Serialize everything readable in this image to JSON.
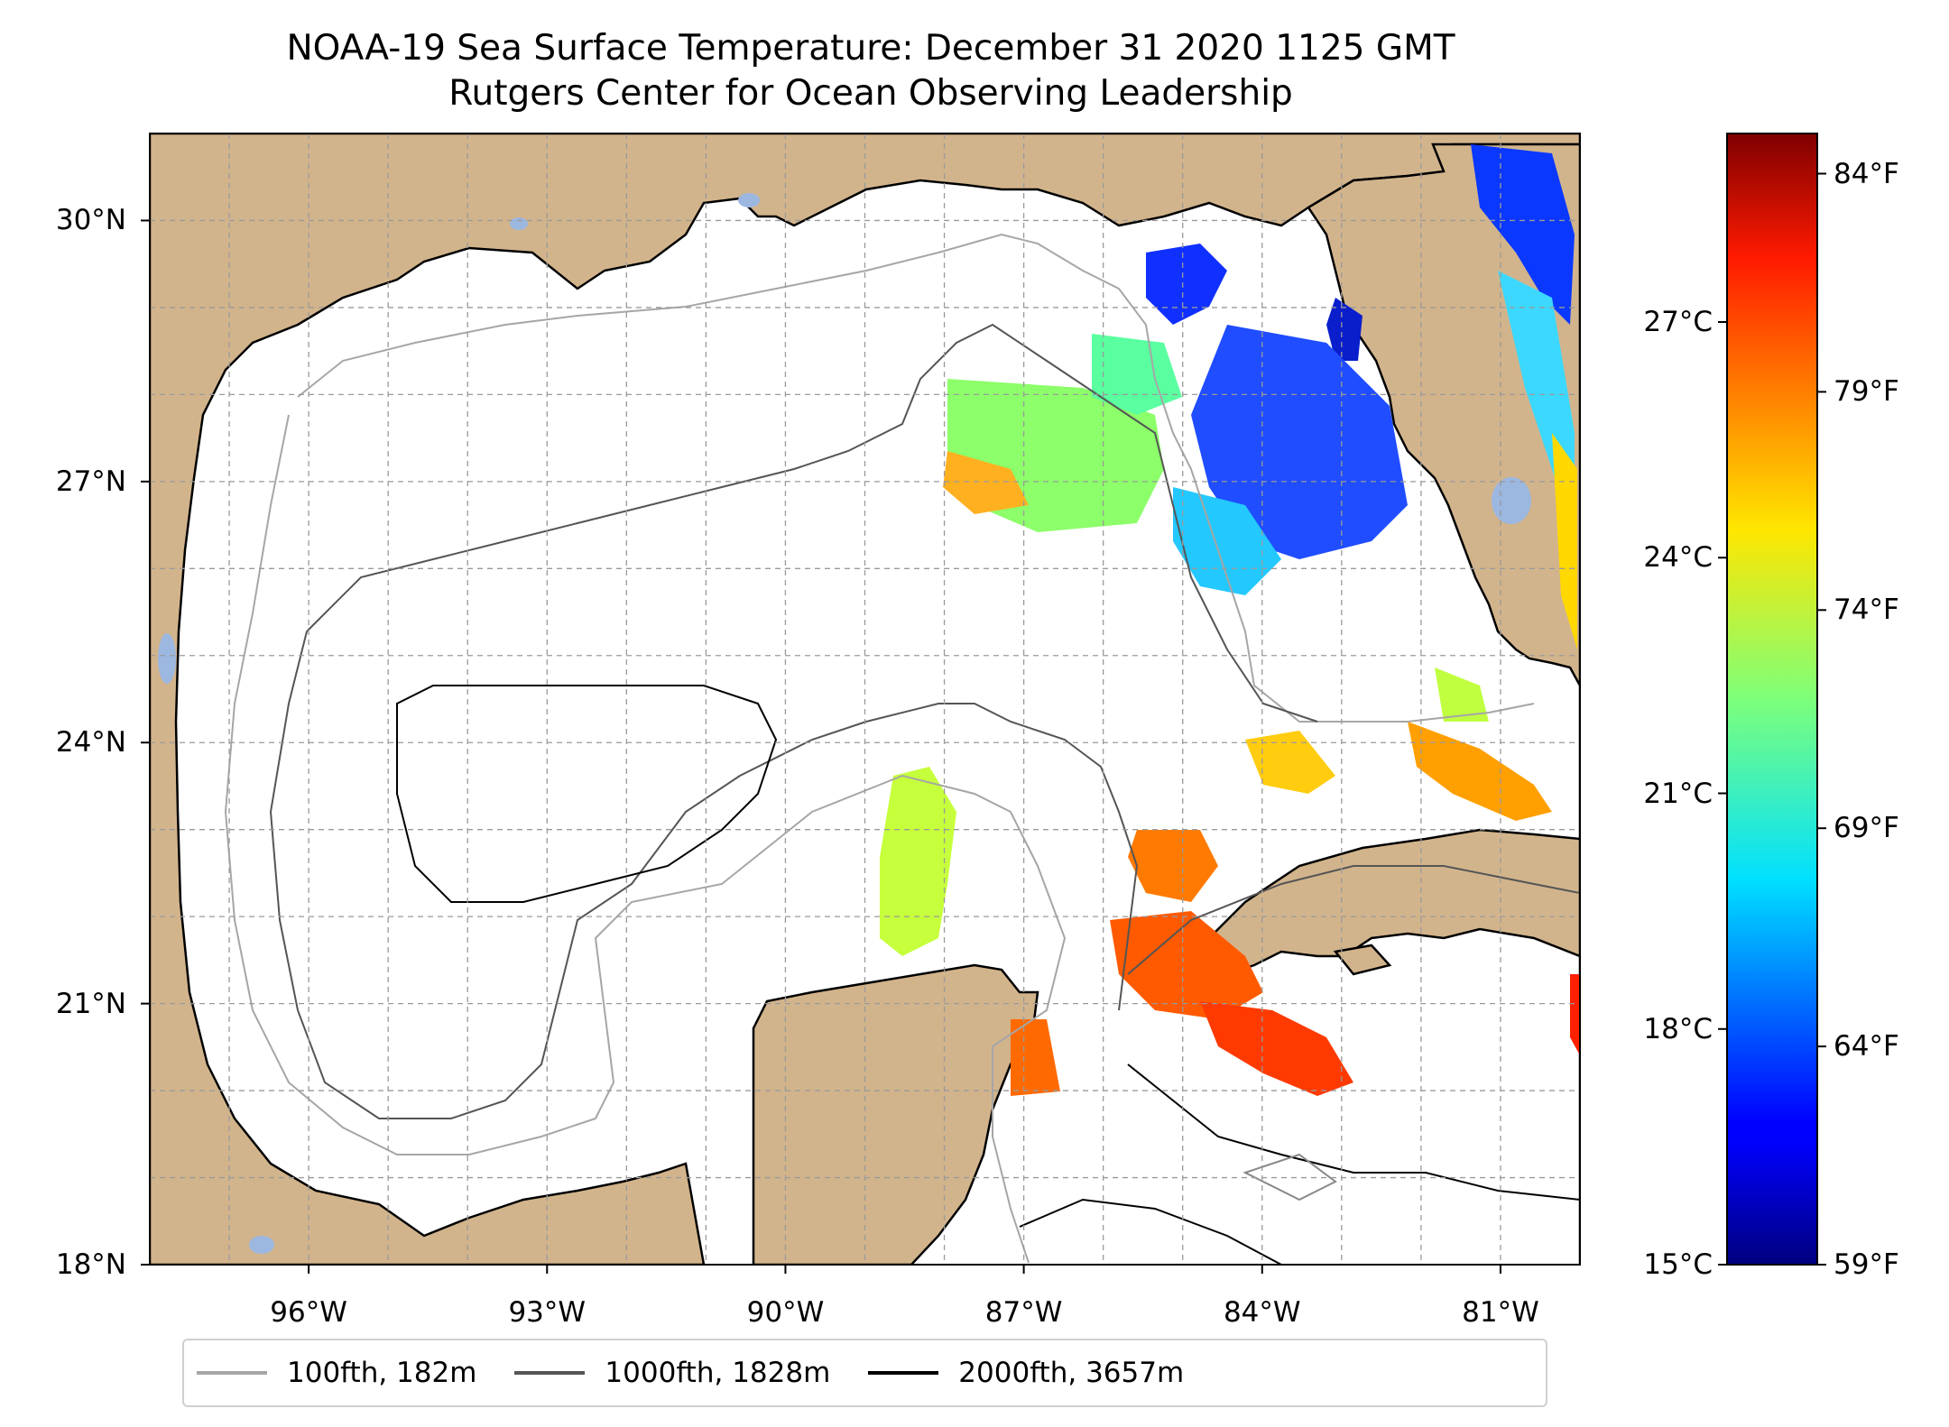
{
  "title": "NOAA-19 Sea Surface Temperature: December 31 2020 1125 GMT",
  "subtitle": "Rutgers Center for Ocean Observing Leadership",
  "map": {
    "lat_range": [
      18,
      31
    ],
    "lon_range": [
      -98,
      -80
    ],
    "lat_ticks": [
      {
        "value": 30,
        "label": "30°N"
      },
      {
        "value": 27,
        "label": "27°N"
      },
      {
        "value": 24,
        "label": "24°N"
      },
      {
        "value": 21,
        "label": "21°N"
      },
      {
        "value": 18,
        "label": "18°N"
      }
    ],
    "lon_ticks": [
      {
        "value": -96,
        "label": "96°W"
      },
      {
        "value": -93,
        "label": "93°W"
      },
      {
        "value": -90,
        "label": "90°W"
      },
      {
        "value": -87,
        "label": "87°W"
      },
      {
        "value": -84,
        "label": "84°W"
      },
      {
        "value": -81,
        "label": "81°W"
      }
    ],
    "gridlines": true,
    "land_color": "#d2b48c",
    "lake_color": "#9cb7e0"
  },
  "colorbar": {
    "colormap": "jet",
    "celsius_range": [
      15,
      29.4
    ],
    "celsius_ticks": [
      {
        "value": 15,
        "label": "15°C"
      },
      {
        "value": 18,
        "label": "18°C"
      },
      {
        "value": 21,
        "label": "21°C"
      },
      {
        "value": 24,
        "label": "24°C"
      },
      {
        "value": 27,
        "label": "27°C"
      }
    ],
    "fahrenheit_ticks": [
      {
        "value": 59,
        "label": "59°F"
      },
      {
        "value": 64,
        "label": "64°F"
      },
      {
        "value": 69,
        "label": "69°F"
      },
      {
        "value": 74,
        "label": "74°F"
      },
      {
        "value": 79,
        "label": "79°F"
      },
      {
        "value": 84,
        "label": "84°F"
      }
    ]
  },
  "legend": [
    {
      "label": "100fth, 182m",
      "color": "#a6a6a6"
    },
    {
      "label": "1000fth, 1828m",
      "color": "#555555"
    },
    {
      "label": "2000fth, 3657m",
      "color": "#000000"
    }
  ]
}
